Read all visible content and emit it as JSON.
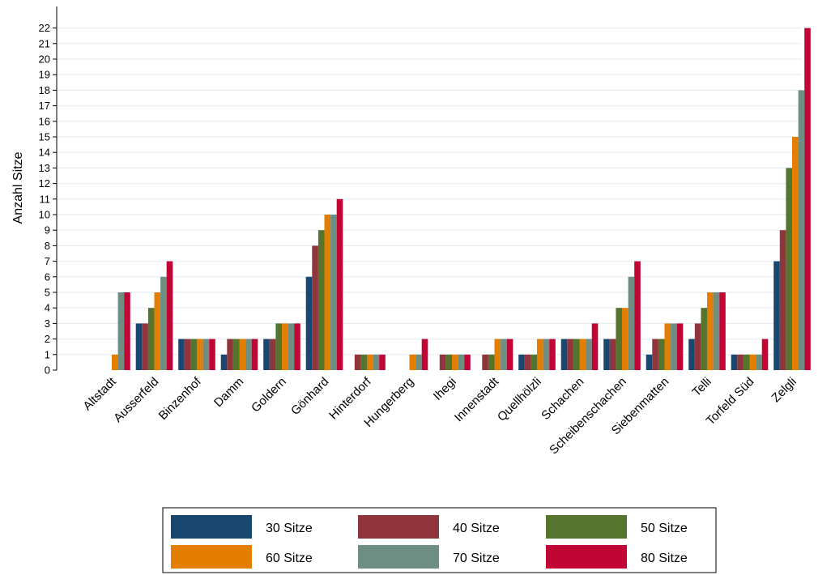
{
  "chart_data": {
    "type": "bar",
    "title": "",
    "xlabel": "",
    "ylabel": "Anzahl Sitze",
    "ylim": [
      0,
      22
    ],
    "yticks": [
      0,
      1,
      2,
      3,
      4,
      5,
      6,
      7,
      8,
      9,
      10,
      11,
      12,
      13,
      14,
      15,
      16,
      17,
      18,
      19,
      20,
      21,
      22
    ],
    "grid": true,
    "legend_position": "bottom",
    "categories": [
      "Altstadt",
      "Ausserfeld",
      "Binzenhof",
      "Damm",
      "Goldern",
      "Gönhard",
      "Hinterdorf",
      "Hungerberg",
      "Ihegi",
      "Innenstadt",
      "Quellhölzli",
      "Schachen",
      "Scheibenschachen",
      "Siebenmatten",
      "Telli",
      "Torfeld Süd",
      "Zelgli"
    ],
    "series": [
      {
        "name": "30 Sitze",
        "color": "#1a476f",
        "values": [
          0,
          3,
          2,
          1,
          2,
          6,
          0,
          0,
          0,
          0,
          1,
          2,
          2,
          1,
          2,
          1,
          7
        ]
      },
      {
        "name": "40 Sitze",
        "color": "#90353b",
        "values": [
          0,
          3,
          2,
          2,
          2,
          8,
          1,
          0,
          1,
          1,
          1,
          2,
          2,
          2,
          3,
          1,
          9
        ]
      },
      {
        "name": "50 Sitze",
        "color": "#55752f",
        "values": [
          0,
          4,
          2,
          2,
          3,
          9,
          1,
          0,
          1,
          1,
          1,
          2,
          4,
          2,
          4,
          1,
          13
        ]
      },
      {
        "name": "60 Sitze",
        "color": "#e37e00",
        "values": [
          1,
          5,
          2,
          2,
          3,
          10,
          1,
          1,
          1,
          2,
          2,
          2,
          4,
          3,
          5,
          1,
          15
        ]
      },
      {
        "name": "70 Sitze",
        "color": "#6e8e84",
        "values": [
          5,
          6,
          2,
          2,
          3,
          10,
          1,
          1,
          1,
          2,
          2,
          2,
          6,
          3,
          5,
          1,
          18
        ]
      },
      {
        "name": "80 Sitze",
        "color": "#c10534",
        "values": [
          5,
          7,
          2,
          2,
          3,
          11,
          1,
          2,
          1,
          2,
          2,
          3,
          7,
          3,
          5,
          2,
          22
        ]
      }
    ]
  }
}
